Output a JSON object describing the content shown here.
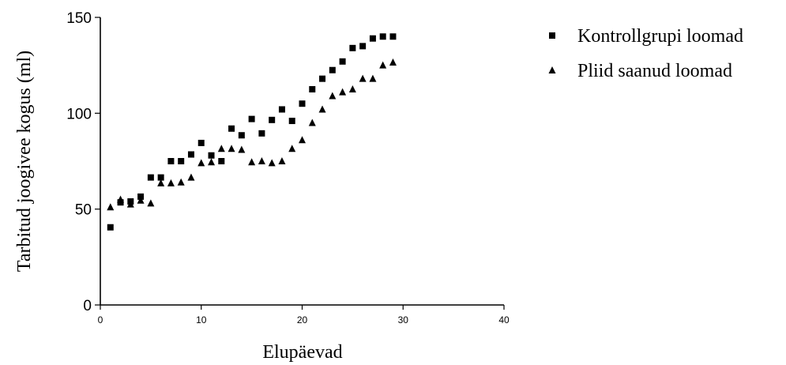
{
  "chart_data": {
    "type": "scatter",
    "xlabel": "Elupäevad",
    "ylabel": "Tarbitud joogivee kogus (ml)",
    "xlim": [
      0,
      40
    ],
    "ylim": [
      0,
      150
    ],
    "xticks": [
      "0",
      "10",
      "20",
      "30",
      "40"
    ],
    "yticks": [
      "0",
      "50",
      "100",
      "150"
    ],
    "grid": false,
    "legend_position": "top-right",
    "series": [
      {
        "name": "Kontrollgrupi loomad",
        "marker": "square",
        "x": [
          1,
          2,
          3,
          4,
          5,
          6,
          7,
          8,
          9,
          10,
          11,
          12,
          13,
          14,
          15,
          16,
          17,
          18,
          19,
          20,
          21,
          22,
          23,
          24,
          25,
          26,
          27,
          28,
          29
        ],
        "y": [
          40.5,
          53.5,
          54,
          56.5,
          66.5,
          66.5,
          75,
          75,
          78.5,
          84.5,
          78,
          75,
          92,
          88.5,
          97,
          89.5,
          96.5,
          102,
          96,
          105,
          112.5,
          118,
          122.5,
          127,
          134,
          135,
          139,
          140,
          140
        ]
      },
      {
        "name": "Pliid saanud loomad",
        "marker": "triangle",
        "x": [
          1,
          2,
          3,
          4,
          5,
          6,
          7,
          8,
          9,
          10,
          11,
          12,
          13,
          14,
          15,
          16,
          17,
          18,
          19,
          20,
          21,
          22,
          23,
          24,
          25,
          26,
          27,
          28,
          29
        ],
        "y": [
          51,
          55,
          52.5,
          54.5,
          53,
          63.5,
          63.5,
          64,
          66.5,
          74,
          74.5,
          81.5,
          81.5,
          81,
          74.5,
          75,
          74,
          75,
          81.5,
          86,
          95,
          102,
          109,
          111,
          112.5,
          118,
          118,
          125,
          126.5
        ]
      }
    ]
  }
}
